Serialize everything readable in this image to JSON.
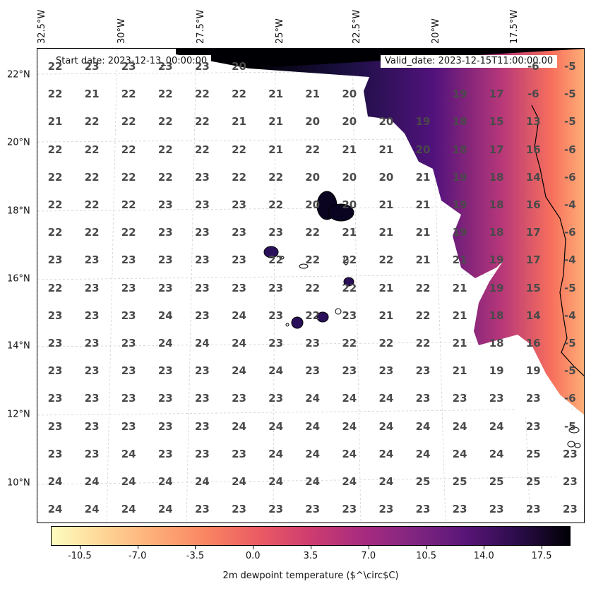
{
  "map": {
    "start_date": "Start date: 2023-12-13_00:00:00",
    "valid_date": "Valid_date: 2023-12-15T11:00:00.00",
    "lon_labels": [
      "32.5°W",
      "30°W",
      "27.5°W",
      "25°W",
      "22.5°W",
      "20°W",
      "17.5°W"
    ],
    "lat_labels": [
      "22°N",
      "20°N",
      "18°N",
      "16°N",
      "14°N",
      "12°N",
      "10°N"
    ],
    "grid_values": [
      [
        "22",
        "23",
        "23",
        "23",
        "23",
        "20",
        "",
        "",
        "",
        "",
        "",
        "",
        "",
        "-6",
        "-5"
      ],
      [
        "22",
        "21",
        "22",
        "22",
        "22",
        "22",
        "21",
        "21",
        "20",
        "",
        "",
        "19",
        "17",
        "-6",
        "-5"
      ],
      [
        "21",
        "22",
        "22",
        "22",
        "22",
        "21",
        "21",
        "20",
        "20",
        "20",
        "19",
        "18",
        "15",
        "13",
        "-5"
      ],
      [
        "22",
        "22",
        "22",
        "22",
        "22",
        "22",
        "21",
        "22",
        "21",
        "21",
        "20",
        "18",
        "17",
        "16",
        "-6"
      ],
      [
        "22",
        "22",
        "22",
        "22",
        "23",
        "22",
        "22",
        "20",
        "20",
        "20",
        "21",
        "19",
        "18",
        "14",
        "-6"
      ],
      [
        "22",
        "22",
        "22",
        "23",
        "23",
        "23",
        "22",
        "20",
        "20",
        "21",
        "21",
        "19",
        "18",
        "16",
        "-4"
      ],
      [
        "22",
        "22",
        "22",
        "23",
        "23",
        "23",
        "23",
        "22",
        "21",
        "21",
        "21",
        "19",
        "18",
        "17",
        "-6"
      ],
      [
        "23",
        "23",
        "23",
        "23",
        "23",
        "23",
        "22",
        "22",
        "22",
        "22",
        "21",
        "21",
        "19",
        "17",
        "-4"
      ],
      [
        "22",
        "23",
        "23",
        "23",
        "23",
        "23",
        "23",
        "22",
        "22",
        "21",
        "22",
        "21",
        "19",
        "15",
        "-5"
      ],
      [
        "23",
        "23",
        "23",
        "24",
        "23",
        "24",
        "23",
        "22",
        "23",
        "21",
        "22",
        "21",
        "18",
        "14",
        "-4"
      ],
      [
        "23",
        "23",
        "23",
        "24",
        "24",
        "24",
        "23",
        "23",
        "22",
        "22",
        "22",
        "21",
        "18",
        "16",
        "-5"
      ],
      [
        "23",
        "23",
        "23",
        "23",
        "23",
        "24",
        "24",
        "23",
        "23",
        "23",
        "23",
        "21",
        "19",
        "19",
        "-5"
      ],
      [
        "23",
        "23",
        "23",
        "23",
        "23",
        "23",
        "23",
        "24",
        "24",
        "24",
        "23",
        "23",
        "23",
        "23",
        "-6"
      ],
      [
        "23",
        "23",
        "23",
        "23",
        "23",
        "24",
        "24",
        "24",
        "24",
        "24",
        "24",
        "24",
        "24",
        "23",
        "-5"
      ],
      [
        "23",
        "23",
        "24",
        "23",
        "23",
        "23",
        "24",
        "24",
        "24",
        "24",
        "24",
        "24",
        "24",
        "25",
        "23"
      ],
      [
        "24",
        "24",
        "24",
        "24",
        "24",
        "24",
        "24",
        "24",
        "24",
        "24",
        "25",
        "25",
        "25",
        "25",
        "23"
      ],
      [
        "24",
        "24",
        "24",
        "24",
        "23",
        "23",
        "23",
        "23",
        "23",
        "23",
        "23",
        "23",
        "23",
        "23",
        "23"
      ]
    ],
    "colors": {
      "land": "#ffffff",
      "coast": "#000000",
      "grid": "#cccccc"
    }
  },
  "colorbar": {
    "label": "2m dewpoint temperature ($^\\circ$C)",
    "range": [
      -12.25,
      19.25
    ],
    "ticks": [
      "-10.5",
      "-7.0",
      "-3.5",
      "0.0",
      "3.5",
      "7.0",
      "10.5",
      "14.0",
      "17.5"
    ],
    "tick_values": [
      -10.5,
      -7.0,
      -3.5,
      0.0,
      3.5,
      7.0,
      10.5,
      14.0,
      17.5
    ],
    "colormap": "magma_r"
  }
}
